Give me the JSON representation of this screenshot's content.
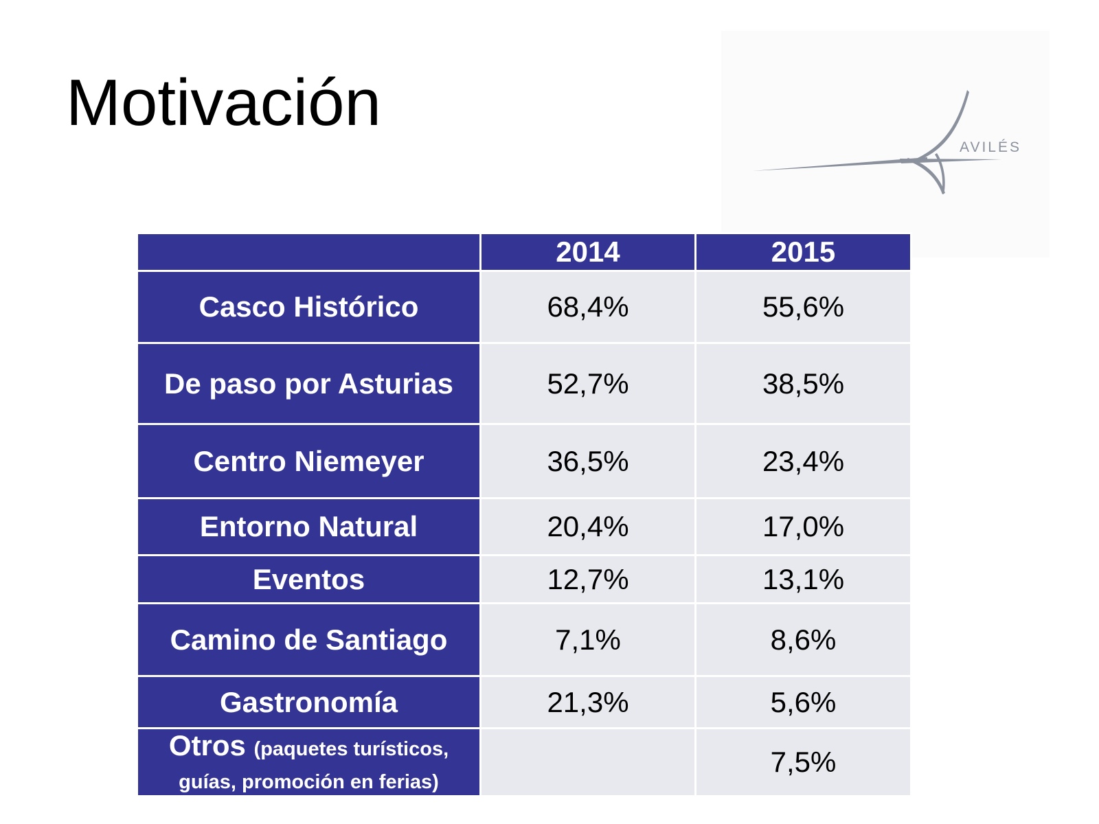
{
  "title": "Motivación",
  "logo": {
    "text": "AVILÉS",
    "color": "#8a919c"
  },
  "colors": {
    "header_bg": "#343494",
    "cell_bg": "#e8e9ee"
  },
  "table": {
    "columns": [
      "",
      "2014",
      "2015"
    ],
    "rows": [
      {
        "label": "Casco Histórico",
        "v2014": "68,4%",
        "v2015": "55,6%"
      },
      {
        "label": "De paso por Asturias",
        "v2014": "52,7%",
        "v2015": "38,5%"
      },
      {
        "label": "Centro Niemeyer",
        "v2014": "36,5%",
        "v2015": "23,4%"
      },
      {
        "label": "Entorno Natural",
        "v2014": "20,4%",
        "v2015": "17,0%"
      },
      {
        "label": "Eventos",
        "v2014": "12,7%",
        "v2015": "13,1%"
      },
      {
        "label": "Camino de Santiago",
        "v2014": "7,1%",
        "v2015": "8,6%"
      },
      {
        "label": "Gastronomía",
        "v2014": "21,3%",
        "v2015": "5,6%"
      },
      {
        "label": "Otros",
        "sublabel": "(paquetes turísticos, guías, promoción en ferias)",
        "v2014": "",
        "v2015": "7,5%"
      }
    ]
  }
}
